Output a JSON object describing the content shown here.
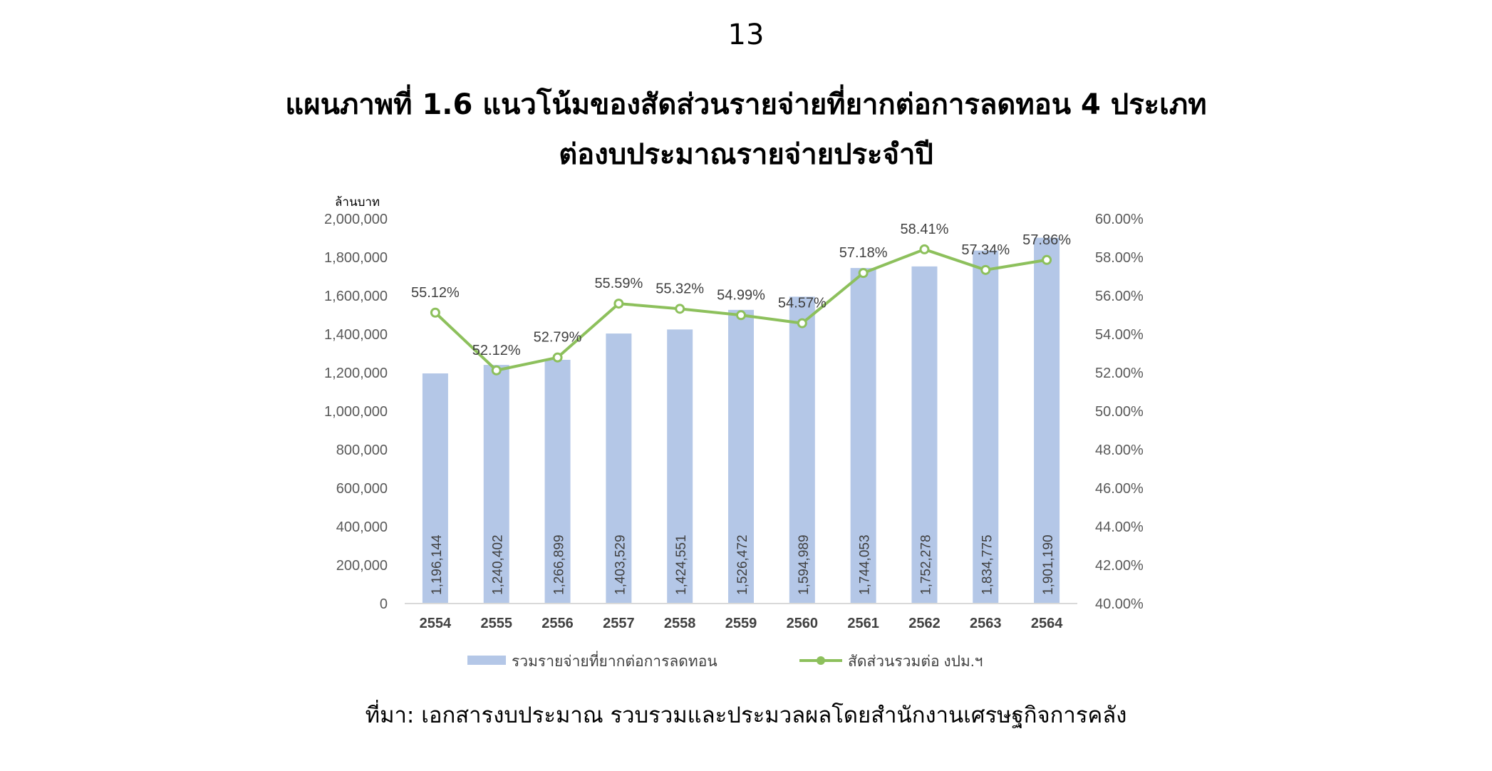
{
  "page": {
    "number": "13",
    "title_line1": "แผนภาพที่ 1.6 แนวโน้มของสัดส่วนรายจ่ายที่ยากต่อการลดทอน 4 ประเภท",
    "title_line2": "ต่องบประมาณรายจ่ายประจำปี",
    "source": "ที่มา: เอกสารงบประมาณ รวบรวมและประมวลผลโดยสำนักงานเศรษฐกิจการคลัง"
  },
  "chart_data": {
    "type": "bar",
    "ylabel": "ล้านบาท",
    "categories": [
      "2554",
      "2555",
      "2556",
      "2557",
      "2558",
      "2559",
      "2560",
      "2561",
      "2562",
      "2563",
      "2564"
    ],
    "ylim": [
      0,
      2000000
    ],
    "yticks": [
      "0",
      "200,000",
      "400,000",
      "600,000",
      "800,000",
      "1,000,000",
      "1,200,000",
      "1,400,000",
      "1,600,000",
      "1,800,000",
      "2,000,000"
    ],
    "y2lim": [
      40,
      60
    ],
    "y2ticks": [
      "40.00%",
      "42.00%",
      "44.00%",
      "46.00%",
      "48.00%",
      "50.00%",
      "52.00%",
      "54.00%",
      "56.00%",
      "58.00%",
      "60.00%"
    ],
    "series": [
      {
        "name": "รวมรายจ่ายที่ยากต่อการลดทอน",
        "type": "bar",
        "axis": "left",
        "color": "#b4c7e7",
        "values": [
          1196144,
          1240402,
          1266899,
          1403529,
          1424551,
          1526472,
          1594989,
          1744053,
          1752278,
          1834775,
          1901190
        ],
        "labels": [
          "1,196,144",
          "1,240,402",
          "1,266,899",
          "1,403,529",
          "1,424,551",
          "1,526,472",
          "1,594,989",
          "1,744,053",
          "1,752,278",
          "1,834,775",
          "1,901,190"
        ]
      },
      {
        "name": "สัดส่วนรวมต่อ งปม.ฯ",
        "type": "line",
        "axis": "right",
        "color": "#8dc05c",
        "values": [
          55.12,
          52.12,
          52.79,
          55.59,
          55.32,
          54.99,
          54.57,
          57.18,
          58.41,
          57.34,
          57.86
        ],
        "labels": [
          "55.12%",
          "52.12%",
          "52.79%",
          "55.59%",
          "55.32%",
          "54.99%",
          "54.57%",
          "57.18%",
          "58.41%",
          "57.34%",
          "57.86%"
        ]
      }
    ],
    "legend": "bottom",
    "grid": false
  }
}
